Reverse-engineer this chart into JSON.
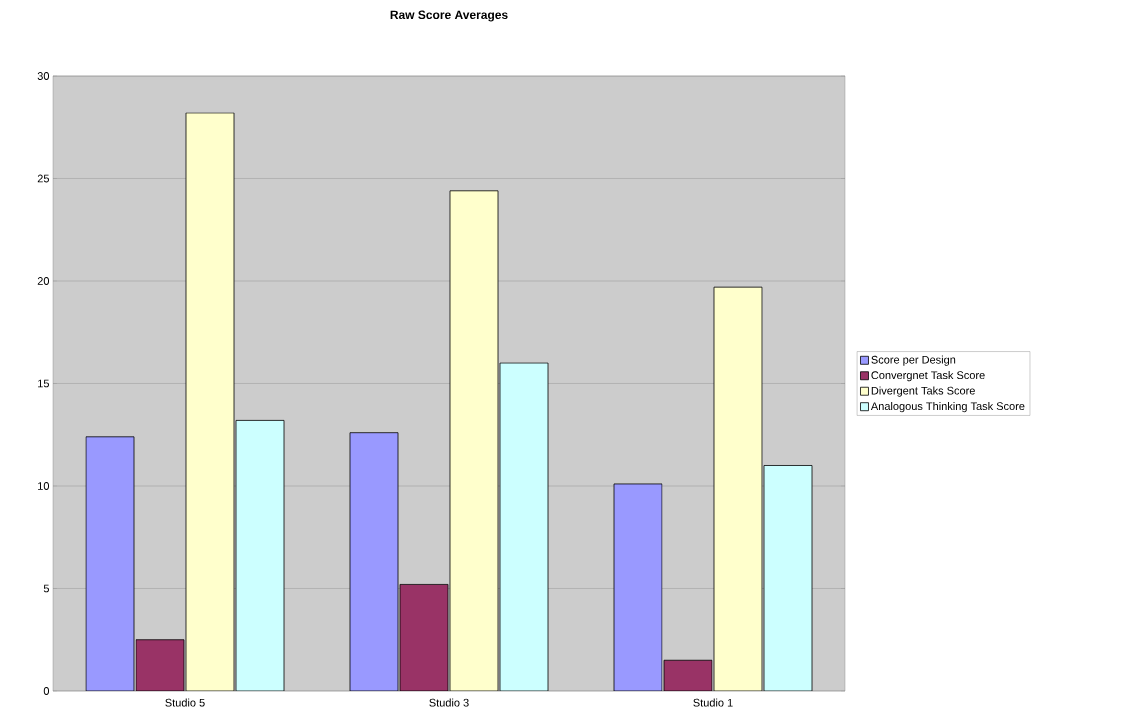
{
  "chart_data": {
    "type": "bar",
    "title": "**Raw Score Averages**",
    "categories": [
      "Studio 5",
      "Studio 3",
      "Studio 1"
    ],
    "series": [
      {
        "name": "Score per Design",
        "color": "#9999ff",
        "values": [
          12.4,
          12.6,
          10.1
        ]
      },
      {
        "name": "Convergnet Task Score",
        "color": "#993366",
        "values": [
          2.5,
          5.2,
          1.5
        ]
      },
      {
        "name": "Divergent Taks Score",
        "color": "#ffffcc",
        "values": [
          28.2,
          24.4,
          19.7
        ]
      },
      {
        "name": "Analogous Thinking Task Score",
        "color": "#ccffff",
        "values": [
          13.2,
          16.0,
          11.0
        ]
      }
    ],
    "ylim": [
      0,
      30
    ],
    "yticks": [
      0,
      5,
      10,
      15,
      20,
      25,
      30
    ],
    "grid": "y",
    "legend": "right"
  }
}
